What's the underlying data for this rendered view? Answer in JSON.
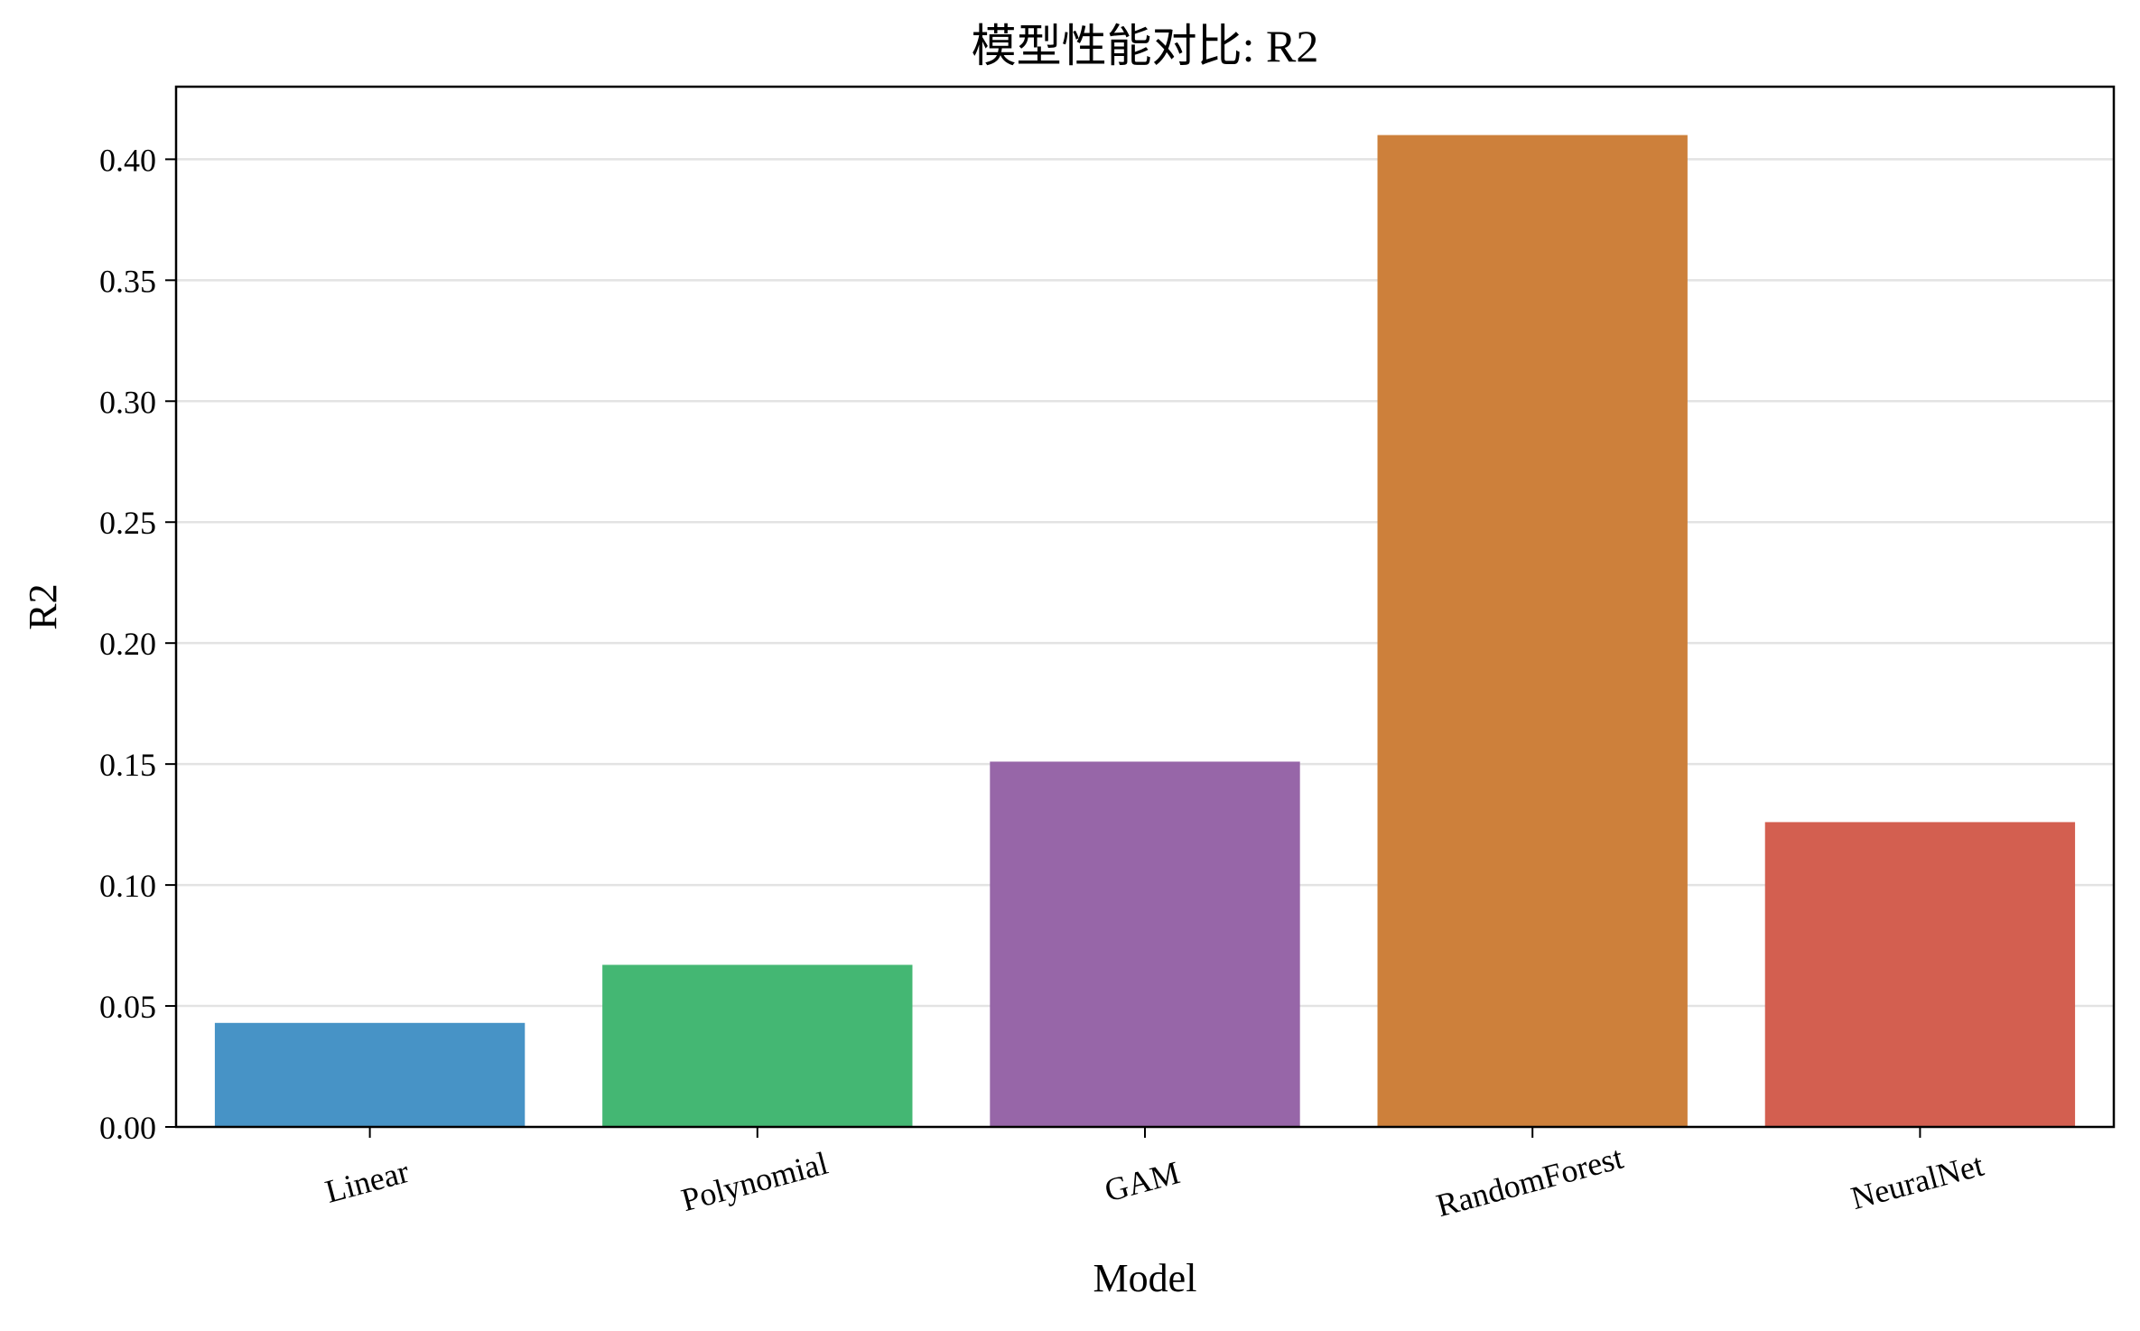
{
  "chart_data": {
    "type": "bar",
    "title": "模型性能对比: R2",
    "xlabel": "Model",
    "ylabel": "R2",
    "categories": [
      "Linear",
      "Polynomial",
      "GAM",
      "RandomForest",
      "NeuralNet"
    ],
    "values": [
      0.043,
      0.067,
      0.151,
      0.41,
      0.126
    ],
    "colors": [
      "#4793c6",
      "#44b773",
      "#9766a8",
      "#cd803b",
      "#d35f50"
    ],
    "ylim": [
      0,
      0.43
    ],
    "yticks": [
      "0.00",
      "0.05",
      "0.10",
      "0.15",
      "0.20",
      "0.25",
      "0.30",
      "0.35",
      "0.40"
    ],
    "ytick_values": [
      0,
      0.05,
      0.1,
      0.15,
      0.2,
      0.25,
      0.3,
      0.35,
      0.4
    ],
    "grid": "horizontal",
    "legend": "none"
  }
}
